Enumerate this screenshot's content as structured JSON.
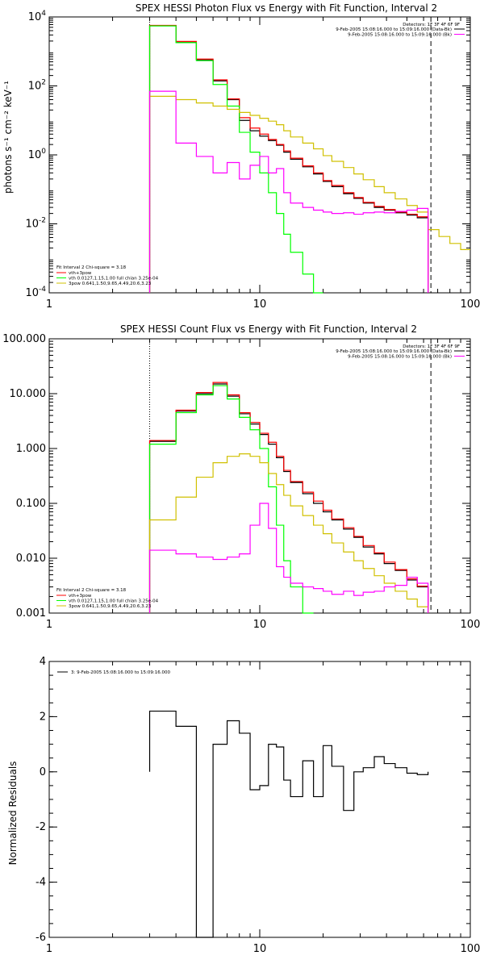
{
  "chart_data": [
    {
      "type": "line",
      "title": "SPEX HESSI Photon Flux vs Energy with Fit Function, Interval 2",
      "ylabel": "photons s⁻¹ cm⁻² keV⁻¹",
      "xlim": [
        1,
        100
      ],
      "ylim": [
        0.0001,
        10000
      ],
      "xscale": "log",
      "yscale": "log",
      "x_ticks": [
        "1",
        "10",
        "100"
      ],
      "y_ticks": [
        {
          "v": 10000,
          "t": "10",
          "e": "4"
        },
        {
          "v": 100,
          "t": "10",
          "e": "2"
        },
        {
          "v": 1,
          "t": "10",
          "e": "0"
        },
        {
          "v": 0.01,
          "t": "10",
          "e": "-2"
        },
        {
          "v": 0.0001,
          "t": "10",
          "e": "-4"
        }
      ],
      "edges": [
        3,
        4,
        5,
        6,
        7,
        8,
        9,
        10,
        11,
        12,
        13,
        14,
        16,
        18,
        20,
        22,
        25,
        28,
        31,
        35,
        39,
        44,
        50,
        56,
        63,
        71,
        80,
        90,
        100
      ],
      "vlines": [
        {
          "x": 3,
          "color": "#000000",
          "style": "dotted"
        },
        {
          "x": 65,
          "color": "#000000",
          "style": "dashed"
        }
      ],
      "series": [
        {
          "color": "#000000",
          "values": [
            5600,
            1900,
            570,
            140,
            40,
            10,
            5,
            3.5,
            2.6,
            1.9,
            1.2,
            0.75,
            0.45,
            0.28,
            0.17,
            0.12,
            0.075,
            0.055,
            0.04,
            0.03,
            0.025,
            0.021,
            0.018,
            0.015,
            null,
            null,
            null,
            null
          ]
        },
        {
          "color": "#ff0000",
          "values": [
            5700,
            1950,
            600,
            150,
            42,
            12,
            6,
            4,
            2.8,
            2,
            1.3,
            0.8,
            0.48,
            0.3,
            0.18,
            0.13,
            0.08,
            0.058,
            0.042,
            0.032,
            0.026,
            0.022,
            0.019,
            0.016,
            null,
            null,
            null,
            null
          ]
        },
        {
          "color": "#00ff00",
          "values": [
            5500,
            1800,
            540,
            110,
            26,
            4.5,
            1.2,
            0.3,
            0.08,
            0.02,
            0.005,
            0.0015,
            0.00035,
            0.0001,
            null,
            null,
            null,
            null,
            null,
            null,
            null,
            null,
            null,
            null,
            null,
            null,
            null,
            null
          ]
        },
        {
          "color": "#d0c000",
          "values": [
            50,
            40,
            32,
            26,
            21,
            17,
            14,
            11.5,
            9.5,
            7.5,
            5,
            3.3,
            2.2,
            1.5,
            0.95,
            0.65,
            0.43,
            0.28,
            0.19,
            0.12,
            0.08,
            0.053,
            0.034,
            0.022,
            0.0068,
            0.0043,
            0.0027,
            0.0018
          ]
        },
        {
          "color": "#ff00ff",
          "values": [
            70,
            2.2,
            0.9,
            0.3,
            0.6,
            0.2,
            0.5,
            0.9,
            0.3,
            0.4,
            0.08,
            0.04,
            0.03,
            0.025,
            0.022,
            0.02,
            0.021,
            0.019,
            0.021,
            0.022,
            0.021,
            0.023,
            0.025,
            0.028,
            null,
            null,
            null,
            null
          ]
        }
      ],
      "fit_text": "Fit Interval  2    Chi-square = 3.18",
      "legend": [
        {
          "color": "#ff0000",
          "text": "vth+3pow"
        },
        {
          "color": "#00ff00",
          "text": "vth 0.0127,1.15,1.00   full chian 3.25e-04"
        },
        {
          "color": "#d0c000",
          "text": "3pow 0.641,1.50,9.65,4.49,20.6,3.23"
        }
      ],
      "detectors": "Detectors: 1F 3F 4F 6F 9F",
      "intervals": [
        {
          "color": "#000000",
          "text": "9-Feb-2005 15:08:16.000 to 15:09:16.000 (Data-Bk)"
        },
        {
          "color": "#ff00ff",
          "text": "9-Feb-2005 15:08:16.000 to 15:09:16.000 (Bk)"
        }
      ]
    },
    {
      "type": "line",
      "title": "SPEX HESSI Count Flux vs Energy with Fit Function, Interval 2",
      "xlim": [
        1,
        100
      ],
      "ylim": [
        0.001,
        100
      ],
      "xscale": "log",
      "yscale": "log",
      "x_ticks": [
        "1",
        "10",
        "100"
      ],
      "y_ticks": [
        {
          "v": 100,
          "t": "100.000"
        },
        {
          "v": 10,
          "t": "10.000"
        },
        {
          "v": 1,
          "t": "1.000"
        },
        {
          "v": 0.1,
          "t": "0.100"
        },
        {
          "v": 0.01,
          "t": "0.010"
        },
        {
          "v": 0.001,
          "t": "0.001"
        }
      ],
      "edges": [
        3,
        4,
        5,
        6,
        7,
        8,
        9,
        10,
        11,
        12,
        13,
        14,
        16,
        18,
        20,
        22,
        25,
        28,
        31,
        35,
        39,
        44,
        50,
        56,
        63,
        71,
        80,
        90,
        100
      ],
      "vlines": [
        {
          "x": 3,
          "color": "#000000",
          "style": "dotted"
        },
        {
          "x": 65,
          "color": "#000000",
          "style": "dashed"
        }
      ],
      "series": [
        {
          "color": "#000000",
          "values": [
            1.35,
            4.8,
            10,
            15,
            9,
            4.3,
            2.8,
            1.8,
            1.2,
            0.68,
            0.38,
            0.24,
            0.15,
            0.1,
            0.07,
            0.05,
            0.034,
            0.024,
            0.016,
            0.012,
            0.008,
            0.006,
            0.004,
            0.003,
            null,
            null,
            null,
            null
          ]
        },
        {
          "color": "#ff0000",
          "values": [
            1.4,
            5,
            10.5,
            16,
            9.5,
            4.5,
            3,
            1.9,
            1.3,
            0.72,
            0.4,
            0.25,
            0.16,
            0.11,
            0.075,
            0.052,
            0.036,
            0.025,
            0.017,
            0.0125,
            0.0085,
            0.0062,
            0.0042,
            0.0031,
            null,
            null,
            null,
            null
          ]
        },
        {
          "color": "#00ff00",
          "values": [
            1.2,
            4.5,
            9.5,
            14,
            8,
            3.7,
            2.2,
            1,
            0.2,
            0.04,
            0.009,
            0.003,
            0.0008,
            null,
            null,
            null,
            null,
            null,
            null,
            null,
            null,
            null,
            null,
            null,
            null,
            null,
            null,
            null
          ]
        },
        {
          "color": "#d0c000",
          "values": [
            0.05,
            0.13,
            0.3,
            0.55,
            0.72,
            0.8,
            0.72,
            0.55,
            0.35,
            0.22,
            0.14,
            0.09,
            0.06,
            0.04,
            0.028,
            0.019,
            0.013,
            0.009,
            0.0065,
            0.0048,
            0.0035,
            0.0025,
            0.0018,
            0.0013,
            null,
            null,
            null,
            null
          ]
        },
        {
          "color": "#ff00ff",
          "values": [
            0.014,
            0.012,
            0.0105,
            0.0095,
            0.0105,
            0.012,
            0.04,
            0.1,
            0.035,
            0.007,
            0.0045,
            0.0035,
            0.003,
            0.0028,
            0.0025,
            0.0022,
            0.0025,
            0.0021,
            0.0024,
            0.0025,
            0.003,
            0.0032,
            0.0045,
            0.0035,
            null,
            null,
            null,
            null
          ]
        }
      ],
      "fit_text": "Fit Interval  2    Chi-square = 3.18",
      "legend": [
        {
          "color": "#ff0000",
          "text": "vth+3pow"
        },
        {
          "color": "#00ff00",
          "text": "vth 0.0127,1.15,1.00   full chian 3.25e-04"
        },
        {
          "color": "#d0c000",
          "text": "3pow 0.641,1.50,9.65,4.49,20.6,3.23"
        }
      ],
      "detectors": "Detectors: 1F 3F 4F 6F 9F",
      "intervals": [
        {
          "color": "#000000",
          "text": "9-Feb-2005 15:08:16.000 to 15:09:16.000 (Data-Bk)"
        },
        {
          "color": "#ff00ff",
          "text": "9-Feb-2005 15:08:16.000 to 15:09:16.000 (Bk)"
        }
      ]
    },
    {
      "type": "line",
      "ylabel": "Normalized Residuals",
      "xlim": [
        1,
        100
      ],
      "ylim": [
        -6,
        4
      ],
      "xscale": "log",
      "yscale": "linear",
      "x_ticks": [
        "1",
        "10",
        "100"
      ],
      "y_ticks": [
        {
          "v": 4,
          "t": "4"
        },
        {
          "v": 2,
          "t": "2"
        },
        {
          "v": 0,
          "t": "0"
        },
        {
          "v": -2,
          "t": "-2"
        },
        {
          "v": -4,
          "t": "-4"
        },
        {
          "v": -6,
          "t": "-6"
        }
      ],
      "edges": [
        3,
        4,
        5,
        6,
        7,
        8,
        9,
        10,
        11,
        12,
        13,
        14,
        16,
        18,
        20,
        22,
        25,
        28,
        31,
        35,
        39,
        44,
        50,
        56,
        63
      ],
      "vlines": [],
      "series": [
        {
          "color": "#000000",
          "values": [
            2.2,
            1.65,
            -6.1,
            1.0,
            1.85,
            1.4,
            -0.65,
            -0.5,
            1.0,
            0.9,
            -0.3,
            -0.9,
            0.4,
            -0.9,
            0.95,
            0.2,
            -1.4,
            0.0,
            0.15,
            0.55,
            0.3,
            0.15,
            -0.05,
            -0.1
          ]
        }
      ],
      "interval_label": "3:  9-Feb-2005 15:08:16.000 to 15:09:16.000"
    }
  ]
}
